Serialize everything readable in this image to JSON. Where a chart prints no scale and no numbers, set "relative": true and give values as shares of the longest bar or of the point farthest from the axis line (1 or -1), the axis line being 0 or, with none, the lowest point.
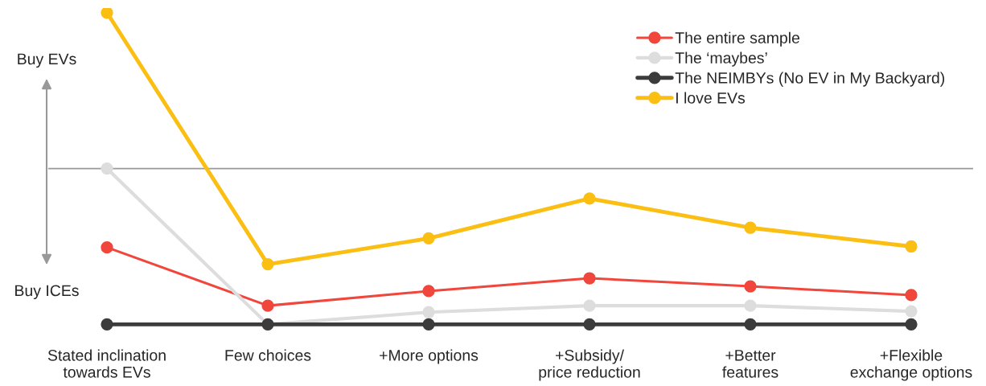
{
  "chart_data": {
    "type": "line",
    "relative": true,
    "categories": [
      "Stated inclination\ntowards EVs",
      "Few choices",
      "+More options",
      "+Subsidy/\nprice reduction",
      "+Better\nfeatures",
      "+Flexible\nexchange options"
    ],
    "series": [
      {
        "name": "The entire sample",
        "color": "#f0463c",
        "values": [
          0.247,
          0.06,
          0.107,
          0.148,
          0.122,
          0.094
        ]
      },
      {
        "name": "The ‘maybes’",
        "color": "#dddddd",
        "values": [
          0.5,
          0,
          0.039,
          0.06,
          0.06,
          0.042
        ]
      },
      {
        "name": "The NEIMBYs (No EV in My Backyard)",
        "color": "#3c3c3c",
        "values": [
          0,
          0,
          0,
          0,
          0,
          0
        ]
      },
      {
        "name": "I love EVs",
        "color": "#fbbf14",
        "values": [
          1,
          0.193,
          0.276,
          0.404,
          0.31,
          0.25
        ]
      }
    ],
    "ref_lines": [
      {
        "axis": "y",
        "value": 0.5,
        "color": "#999999"
      }
    ],
    "annotations": [
      "Buy EVs",
      "Buy ICEs"
    ],
    "marker": "circle",
    "line_style": "solid",
    "legend": "top right",
    "grid": false,
    "tick_labels": "x"
  }
}
